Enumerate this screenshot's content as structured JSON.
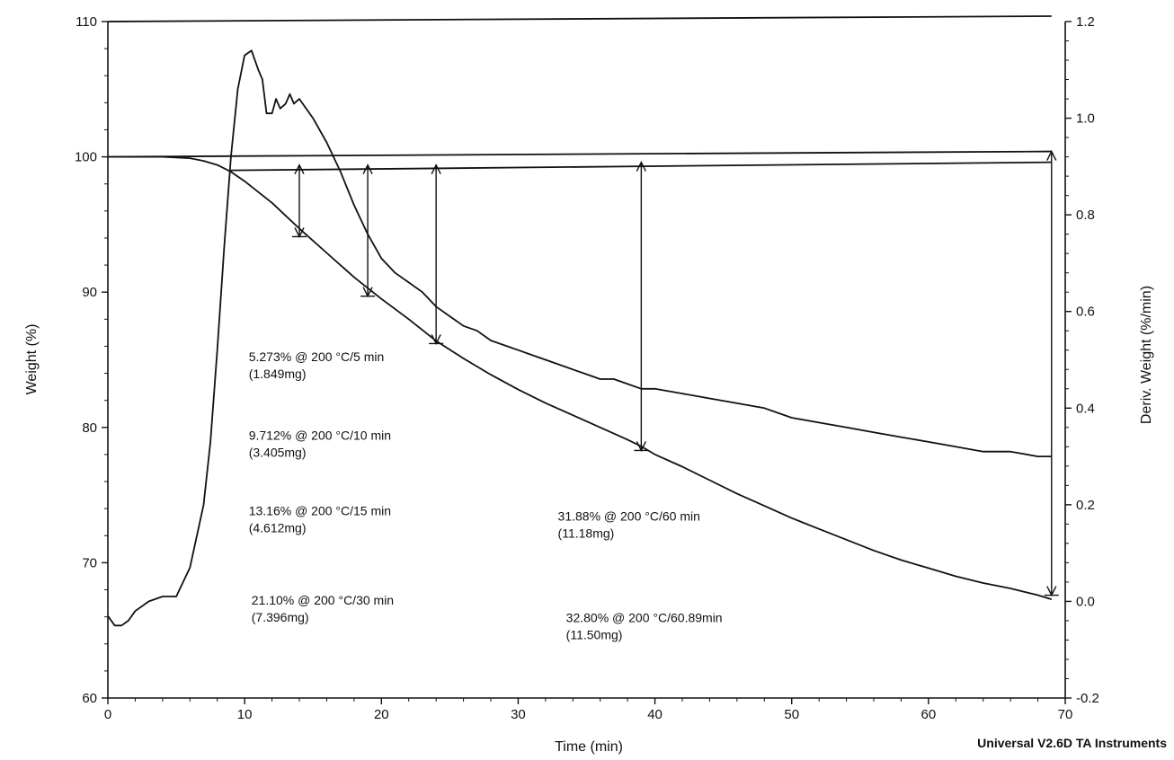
{
  "chart_data": {
    "type": "line",
    "xlabel": "Time (min)",
    "ylabel_left": "Weight (%)",
    "ylabel_right": "Deriv. Weight (%/min)",
    "xlim": [
      0,
      70
    ],
    "ylim_left": [
      60,
      110
    ],
    "ylim_right": [
      -0.2,
      1.2
    ],
    "x_ticks": [
      0,
      10,
      20,
      30,
      40,
      50,
      60,
      70
    ],
    "y_left_ticks": [
      60,
      70,
      80,
      90,
      100,
      110
    ],
    "y_right_ticks": [
      -0.2,
      0.0,
      0.2,
      0.4,
      0.6,
      0.8,
      1.0,
      1.2
    ],
    "y_right_tick_labels": [
      "-0.2",
      "0.0",
      "0.2",
      "0.4",
      "0.6",
      "0.8",
      "1.0",
      "1.2"
    ],
    "grid": false,
    "footer": "Universal V2.6D TA Instruments",
    "series": [
      {
        "axis": "left",
        "values_x": [
          0,
          2,
          4,
          6,
          7,
          8,
          9,
          10,
          12,
          14,
          16,
          18,
          19,
          20,
          22,
          24,
          26,
          28,
          30,
          32,
          34,
          36,
          38,
          39,
          40,
          42,
          44,
          46,
          48,
          50,
          52,
          54,
          56,
          58,
          60,
          62,
          64,
          66,
          68,
          69
        ],
        "values_y": [
          100.0,
          100.0,
          100.0,
          99.9,
          99.7,
          99.4,
          98.9,
          98.2,
          96.6,
          94.7,
          92.9,
          91.1,
          90.3,
          89.5,
          88.0,
          86.4,
          85.1,
          83.9,
          82.8,
          81.8,
          80.9,
          80.0,
          79.1,
          78.6,
          78.0,
          77.1,
          76.1,
          75.1,
          74.2,
          73.3,
          72.5,
          71.7,
          70.9,
          70.2,
          69.6,
          69.0,
          68.5,
          68.1,
          67.6,
          67.3
        ]
      },
      {
        "axis": "right",
        "values_x": [
          0,
          0.5,
          1,
          1.5,
          2,
          3,
          4,
          5,
          6,
          7,
          7.5,
          8,
          8.5,
          9,
          9.5,
          10,
          10.5,
          11,
          11.3,
          11.6,
          12,
          12.3,
          12.6,
          13,
          13.3,
          13.6,
          14,
          15,
          16,
          17,
          18,
          19,
          20,
          21,
          22,
          23,
          24,
          25,
          26,
          27,
          28,
          29,
          30,
          31,
          32,
          33,
          34,
          35,
          36,
          37,
          38,
          39,
          40,
          42,
          44,
          46,
          48,
          50,
          52,
          54,
          56,
          58,
          60,
          62,
          64,
          66,
          68,
          69
        ],
        "values_y": [
          -0.03,
          -0.05,
          -0.05,
          -0.04,
          -0.02,
          0.0,
          0.01,
          0.01,
          0.07,
          0.2,
          0.33,
          0.52,
          0.73,
          0.92,
          1.06,
          1.13,
          1.14,
          1.1,
          1.08,
          1.01,
          1.01,
          1.04,
          1.02,
          1.03,
          1.05,
          1.03,
          1.04,
          1.0,
          0.95,
          0.89,
          0.82,
          0.76,
          0.71,
          0.68,
          0.66,
          0.64,
          0.61,
          0.59,
          0.57,
          0.56,
          0.54,
          0.53,
          0.52,
          0.51,
          0.5,
          0.49,
          0.48,
          0.47,
          0.46,
          0.46,
          0.45,
          0.44,
          0.44,
          0.43,
          0.42,
          0.41,
          0.4,
          0.38,
          0.37,
          0.36,
          0.35,
          0.34,
          0.33,
          0.32,
          0.31,
          0.31,
          0.3,
          0.3
        ]
      }
    ],
    "reference_lines": [
      {
        "x1": 0,
        "y1": 100.0,
        "x2": 69,
        "y2": 100.4
      },
      {
        "x1": 9,
        "y1": 99.0,
        "x2": 69,
        "y2": 99.6
      },
      {
        "x1": 0,
        "y1": 110.0,
        "x2": 69,
        "y2": 110.4
      }
    ],
    "markers": [
      {
        "x": 14,
        "y_top": 99.4,
        "y_bottom": 94.1
      },
      {
        "x": 19,
        "y_top": 99.4,
        "y_bottom": 89.7
      },
      {
        "x": 24,
        "y_top": 99.4,
        "y_bottom": 86.2
      },
      {
        "x": 39,
        "y_top": 99.6,
        "y_bottom": 78.3
      },
      {
        "x": 69,
        "y_top": 100.4,
        "y_bottom": 67.6
      }
    ],
    "annotations": [
      {
        "line1": "5.273% @ 200 °C/5 min",
        "line2": "(1.849mg)",
        "x": 10.3,
        "y": 84.9
      },
      {
        "line1": "9.712% @ 200 °C/10 min",
        "line2": "(3.405mg)",
        "x": 10.3,
        "y": 79.1
      },
      {
        "line1": "13.16% @ 200 °C/15 min",
        "line2": "(4.612mg)",
        "x": 10.3,
        "y": 73.5
      },
      {
        "line1": "21.10% @ 200 °C/30 min",
        "line2": "(7.396mg)",
        "x": 10.5,
        "y": 66.9
      },
      {
        "line1": "31.88% @ 200 °C/60 min",
        "line2": "(11.18mg)",
        "x": 32.9,
        "y": 73.1
      },
      {
        "line1": "32.80% @ 200 °C/60.89min",
        "line2": "(11.50mg)",
        "x": 33.5,
        "y": 65.6
      }
    ]
  }
}
